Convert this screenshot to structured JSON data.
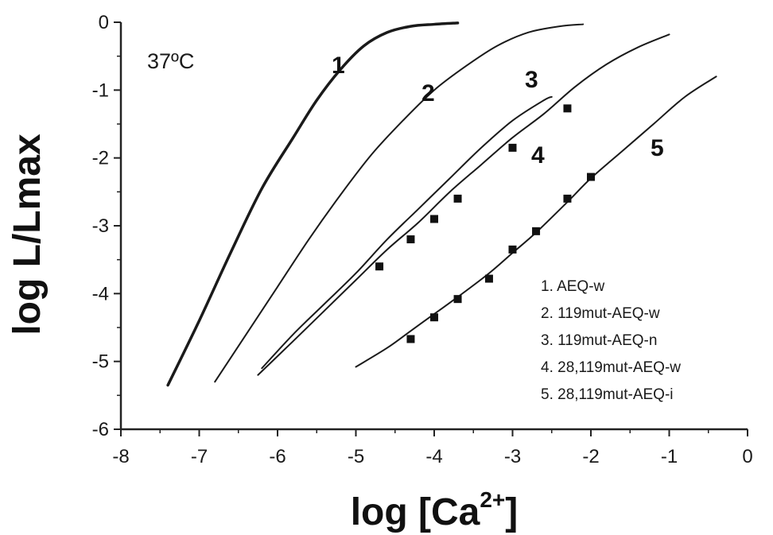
{
  "chart_data": {
    "type": "line",
    "title": "",
    "annotation": "37ºC",
    "xlabel": "log [Ca",
    "xlabel_sup": "2+",
    "xlabel_end": "]",
    "ylabel": "log L/Lmax",
    "xlim": [
      -8,
      0
    ],
    "ylim": [
      -6,
      0
    ],
    "x_ticks": [
      -8,
      -7,
      -6,
      -5,
      -4,
      -3,
      -2,
      -1,
      0
    ],
    "y_ticks": [
      0,
      -1,
      -2,
      -3,
      -4,
      -5,
      -6
    ],
    "grid": false,
    "legend_position": "bottom-right",
    "legend": [
      "1. AEQ-w",
      "2. 119mut-AEQ-w",
      "3. 119mut-AEQ-n",
      "4. 28,119mut-AEQ-w",
      "5. 28,119mut-AEQ-i"
    ],
    "series": [
      {
        "name": "1",
        "label": "1",
        "x": [
          -7.4,
          -7.0,
          -6.6,
          -6.2,
          -5.8,
          -5.5,
          -5.2,
          -4.9,
          -4.6,
          -4.3,
          -4.0,
          -3.7
        ],
        "y": [
          -5.35,
          -4.4,
          -3.4,
          -2.45,
          -1.7,
          -1.15,
          -0.7,
          -0.35,
          -0.15,
          -0.06,
          -0.03,
          -0.01
        ]
      },
      {
        "name": "2",
        "label": "2",
        "x": [
          -6.8,
          -6.4,
          -6.0,
          -5.6,
          -5.2,
          -4.8,
          -4.4,
          -4.0,
          -3.6,
          -3.2,
          -2.8,
          -2.4,
          -2.1
        ],
        "y": [
          -5.3,
          -4.6,
          -3.9,
          -3.2,
          -2.55,
          -1.95,
          -1.45,
          -1.0,
          -0.65,
          -0.35,
          -0.15,
          -0.06,
          -0.03
        ]
      },
      {
        "name": "3",
        "label": "3",
        "x": [
          -6.2,
          -5.8,
          -5.4,
          -5.0,
          -4.6,
          -4.2,
          -3.8,
          -3.4,
          -3.0,
          -2.6,
          -2.5
        ],
        "y": [
          -5.1,
          -4.6,
          -4.15,
          -3.7,
          -3.2,
          -2.75,
          -2.3,
          -1.85,
          -1.45,
          -1.15,
          -1.1
        ]
      },
      {
        "name": "4",
        "label": "4",
        "x": [
          -6.25,
          -5.8,
          -5.4,
          -5.0,
          -4.6,
          -4.2,
          -3.8,
          -3.4,
          -3.0,
          -2.6,
          -2.2,
          -1.8,
          -1.4,
          -1.0
        ],
        "y": [
          -5.2,
          -4.7,
          -4.25,
          -3.8,
          -3.35,
          -2.95,
          -2.5,
          -2.1,
          -1.7,
          -1.35,
          -0.95,
          -0.62,
          -0.37,
          -0.18
        ],
        "markers_x": [
          -4.7,
          -4.3,
          -4.0,
          -3.7,
          -3.0,
          -2.3
        ],
        "markers_y": [
          -3.6,
          -3.2,
          -2.9,
          -2.6,
          -1.85,
          -1.27
        ]
      },
      {
        "name": "5",
        "label": "5",
        "x": [
          -5.0,
          -4.6,
          -4.3,
          -4.0,
          -3.7,
          -3.3,
          -3.0,
          -2.7,
          -2.3,
          -2.0,
          -1.6,
          -1.2,
          -0.8,
          -0.4
        ],
        "y": [
          -5.08,
          -4.8,
          -4.55,
          -4.3,
          -4.05,
          -3.7,
          -3.4,
          -3.1,
          -2.65,
          -2.3,
          -1.9,
          -1.5,
          -1.1,
          -0.8
        ],
        "markers_x": [
          -4.3,
          -4.0,
          -3.7,
          -3.3,
          -3.0,
          -2.7,
          -2.3,
          -2.0
        ],
        "markers_y": [
          -4.67,
          -4.35,
          -4.08,
          -3.78,
          -3.35,
          -3.08,
          -2.6,
          -2.28
        ]
      }
    ]
  }
}
